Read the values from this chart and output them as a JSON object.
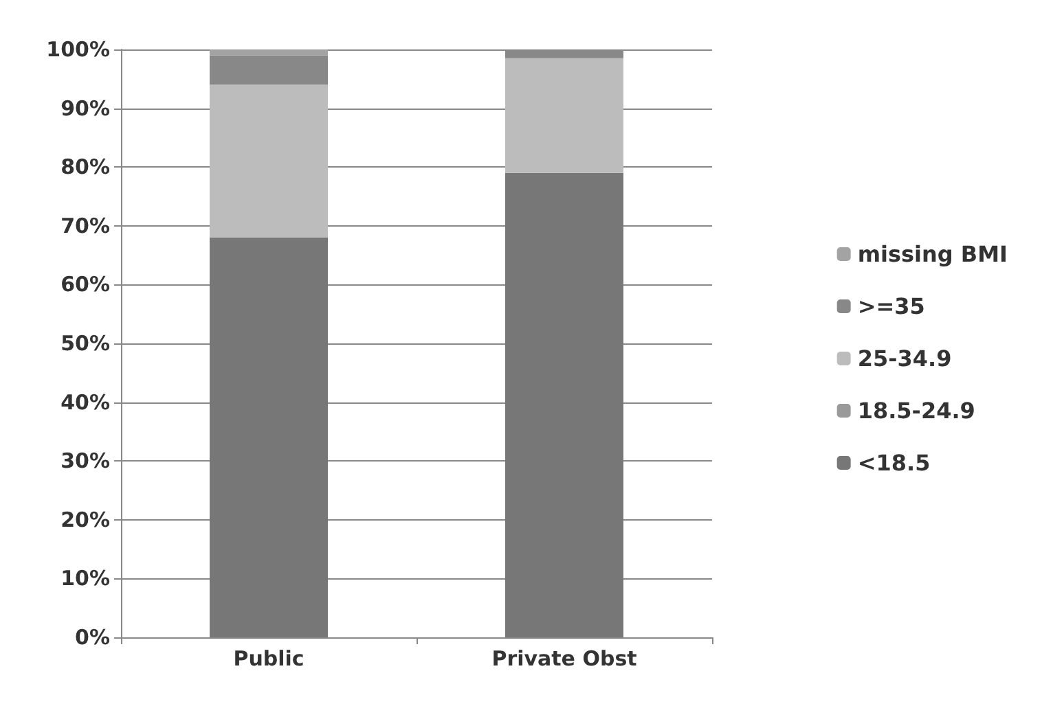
{
  "chart_data": {
    "type": "bar",
    "stacked": true,
    "categories": [
      "Public",
      "Private Obst"
    ],
    "series": [
      {
        "name": "<18.5",
        "color": "#777777",
        "values": [
          68,
          79
        ]
      },
      {
        "name": "18.5-24.9",
        "color": "#9a9a9a",
        "values": [
          0,
          0
        ]
      },
      {
        "name": "25-34.9",
        "color": "#bcbcbc",
        "values": [
          26,
          19.5
        ]
      },
      {
        "name": ">=35",
        "color": "#888888",
        "values": [
          5,
          1.5
        ]
      },
      {
        "name": "missing BMI",
        "color": "#a3a3a3",
        "values": [
          1,
          null
        ]
      }
    ],
    "ylim": [
      0,
      100
    ],
    "yticks": [
      {
        "value": 0,
        "label": "0%"
      },
      {
        "value": 10,
        "label": "10%"
      },
      {
        "value": 20,
        "label": "20%"
      },
      {
        "value": 30,
        "label": "30%"
      },
      {
        "value": 40,
        "label": "40%"
      },
      {
        "value": 50,
        "label": "50%"
      },
      {
        "value": 60,
        "label": "60%"
      },
      {
        "value": 70,
        "label": "70%"
      },
      {
        "value": 80,
        "label": "80%"
      },
      {
        "value": 90,
        "label": "90%"
      },
      {
        "value": 100,
        "label": "100%"
      }
    ],
    "grid": "y",
    "legend": "right"
  }
}
